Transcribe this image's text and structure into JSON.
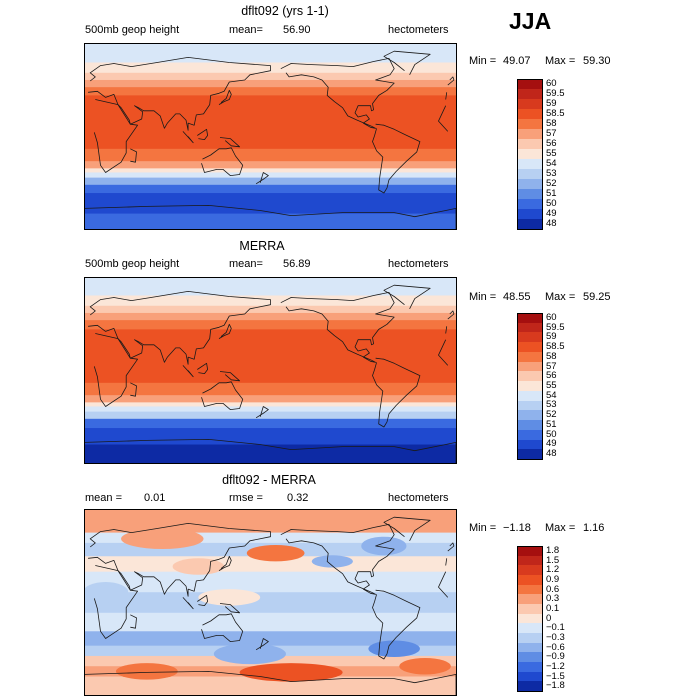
{
  "season": "JJA",
  "panels": [
    {
      "title": "dflt092 (yrs 1-1)",
      "field": "500mb geop height",
      "stat1_label": "mean=",
      "stat1_value": "56.90",
      "stat2_label": "",
      "stat2_value": "",
      "units": "hectometers",
      "min_label": "Min =",
      "min_value": "49.07",
      "max_label": "Max =",
      "max_value": "59.30",
      "levels": [
        "60",
        "59.5",
        "59",
        "58.5",
        "58",
        "57",
        "56",
        "55",
        "54",
        "53",
        "52",
        "51",
        "50",
        "49",
        "48"
      ],
      "colors": [
        "#a50f0f",
        "#c0261a",
        "#d83a1e",
        "#ec5223",
        "#f47540",
        "#f8a07a",
        "#fbc9b0",
        "#fbe6d8",
        "#d8e7f8",
        "#b7d0f2",
        "#8fb2ec",
        "#5f8de4",
        "#3a6ae0",
        "#1f49cf",
        "#0d2aa4"
      ],
      "bands": [
        {
          "color_index": 8,
          "lat_top": 90
        },
        {
          "color_index": 7,
          "lat_top": 72
        },
        {
          "color_index": 6,
          "lat_top": 62
        },
        {
          "color_index": 5,
          "lat_top": 55
        },
        {
          "color_index": 4,
          "lat_top": 48
        },
        {
          "color_index": 3,
          "lat_top": 40
        },
        {
          "color_index": 4,
          "lat_top": -12
        },
        {
          "color_index": 5,
          "lat_top": -24
        },
        {
          "color_index": 7,
          "lat_top": -31
        },
        {
          "color_index": 8,
          "lat_top": -35
        },
        {
          "color_index": 10,
          "lat_top": -40
        },
        {
          "color_index": 12,
          "lat_top": -47
        },
        {
          "color_index": 13,
          "lat_top": -55
        },
        {
          "color_index": 12,
          "lat_top": -75
        }
      ]
    },
    {
      "title": "MERRA",
      "field": "500mb geop height",
      "stat1_label": "mean=",
      "stat1_value": "56.89",
      "stat2_label": "",
      "stat2_value": "",
      "units": "hectometers",
      "min_label": "Min =",
      "min_value": "48.55",
      "max_label": "Max =",
      "max_value": "59.25",
      "levels": [
        "60",
        "59.5",
        "59",
        "58.5",
        "58",
        "57",
        "56",
        "55",
        "54",
        "53",
        "52",
        "51",
        "50",
        "49",
        "48"
      ],
      "colors": [
        "#a50f0f",
        "#c0261a",
        "#d83a1e",
        "#ec5223",
        "#f47540",
        "#f8a07a",
        "#fbc9b0",
        "#fbe6d8",
        "#d8e7f8",
        "#b7d0f2",
        "#8fb2ec",
        "#5f8de4",
        "#3a6ae0",
        "#1f49cf",
        "#0d2aa4"
      ],
      "bands": [
        {
          "color_index": 8,
          "lat_top": 90
        },
        {
          "color_index": 7,
          "lat_top": 73
        },
        {
          "color_index": 6,
          "lat_top": 63
        },
        {
          "color_index": 5,
          "lat_top": 56
        },
        {
          "color_index": 4,
          "lat_top": 49
        },
        {
          "color_index": 3,
          "lat_top": 40
        },
        {
          "color_index": 4,
          "lat_top": -12
        },
        {
          "color_index": 5,
          "lat_top": -24
        },
        {
          "color_index": 7,
          "lat_top": -31
        },
        {
          "color_index": 8,
          "lat_top": -35
        },
        {
          "color_index": 9,
          "lat_top": -40
        },
        {
          "color_index": 12,
          "lat_top": -47
        },
        {
          "color_index": 13,
          "lat_top": -56
        },
        {
          "color_index": 14,
          "lat_top": -72
        }
      ]
    },
    {
      "title": "dflt092 - MERRA",
      "field": "",
      "stat1_label": "mean =",
      "stat1_value": "0.01",
      "stat2_label": "rmse =",
      "stat2_value": "0.32",
      "units": "hectometers",
      "min_label": "Min =",
      "min_value": "−1.18",
      "max_label": "Max =",
      "max_value": "1.16",
      "levels": [
        "1.8",
        "1.5",
        "1.2",
        "0.9",
        "0.6",
        "0.3",
        "0.1",
        "0",
        "−0.1",
        "−0.3",
        "−0.6",
        "−0.9",
        "−1.2",
        "−1.5",
        "−1.8"
      ],
      "colors": [
        "#a50f0f",
        "#c0261a",
        "#d83a1e",
        "#ec5223",
        "#f47540",
        "#f8a07a",
        "#fbc9b0",
        "#fbe6d8",
        "#d8e7f8",
        "#b7d0f2",
        "#8fb2ec",
        "#5f8de4",
        "#3a6ae0",
        "#1f49cf",
        "#0d2aa4"
      ],
      "bands": [
        {
          "color_index": 5,
          "lat_top": 90
        },
        {
          "color_index": 8,
          "lat_top": 68
        },
        {
          "color_index": 9,
          "lat_top": 58
        },
        {
          "color_index": 7,
          "lat_top": 45
        },
        {
          "color_index": 8,
          "lat_top": 30
        },
        {
          "color_index": 9,
          "lat_top": 10
        },
        {
          "color_index": 8,
          "lat_top": -10
        },
        {
          "color_index": 10,
          "lat_top": -28
        },
        {
          "color_index": 9,
          "lat_top": -42
        },
        {
          "color_index": 6,
          "lat_top": -52
        },
        {
          "color_index": 5,
          "lat_top": -62
        },
        {
          "color_index": 6,
          "lat_top": -72
        }
      ],
      "blobs": [
        {
          "lon": 75,
          "lat": 62,
          "rx": 40,
          "ry": 10,
          "color_index": 5
        },
        {
          "lon": 185,
          "lat": 48,
          "rx": 28,
          "ry": 8,
          "color_index": 4
        },
        {
          "lon": 290,
          "lat": 55,
          "rx": 22,
          "ry": 9,
          "color_index": 10
        },
        {
          "lon": 110,
          "lat": 35,
          "rx": 25,
          "ry": 8,
          "color_index": 6
        },
        {
          "lon": 240,
          "lat": 40,
          "rx": 20,
          "ry": 6,
          "color_index": 10
        },
        {
          "lon": 160,
          "lat": -50,
          "rx": 35,
          "ry": 10,
          "color_index": 10
        },
        {
          "lon": 300,
          "lat": -45,
          "rx": 25,
          "ry": 8,
          "color_index": 11
        },
        {
          "lon": 60,
          "lat": -67,
          "rx": 30,
          "ry": 8,
          "color_index": 4
        },
        {
          "lon": 200,
          "lat": -68,
          "rx": 50,
          "ry": 9,
          "color_index": 3
        },
        {
          "lon": 330,
          "lat": -62,
          "rx": 25,
          "ry": 8,
          "color_index": 4
        },
        {
          "lon": 20,
          "lat": 10,
          "rx": 22,
          "ry": 10,
          "color_index": 9
        },
        {
          "lon": 140,
          "lat": 5,
          "rx": 30,
          "ry": 8,
          "color_index": 7
        }
      ]
    }
  ]
}
